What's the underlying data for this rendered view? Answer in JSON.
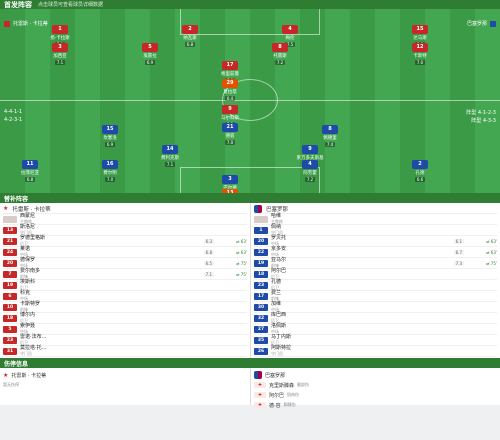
{
  "header": {
    "title": "首发阵容",
    "subtitle": "点击球员可查看球员详细数据"
  },
  "home": {
    "name": "托雷斯 · 卡拉蒂",
    "formation_sub": "",
    "color": "#c62828",
    "badge": "#c62828",
    "form": "4-4-1-1",
    "players": [
      {
        "num": "1",
        "name": "扬·卡拉斯",
        "rating": "7.0"
      },
      {
        "num": "2",
        "name": "纳瓦斯",
        "rating": "6.8"
      },
      {
        "num": "4",
        "name": "梅伦",
        "rating": "7.5"
      },
      {
        "num": "15",
        "name": "达马斯",
        "rating": "6.6"
      },
      {
        "num": "3",
        "name": "加西亚",
        "rating": "7.1"
      },
      {
        "num": "5",
        "name": "埃雷拉",
        "rating": "6.9"
      },
      {
        "num": "8",
        "name": "托雷斯",
        "rating": "7.2"
      },
      {
        "num": "12",
        "name": "卡斯特",
        "rating": "7.0"
      },
      {
        "num": "17",
        "name": "格里兹曼",
        "rating": "7.8"
      },
      {
        "num": "29",
        "name": "莫拉塔",
        "rating": "6.4"
      },
      {
        "num": "9",
        "name": "马尔科斯",
        "rating": "7.3"
      }
    ]
  },
  "away": {
    "name": "巴塞罗那",
    "color": "#1e4aa8",
    "form": "4-3-3",
    "players": [
      {
        "num": "15",
        "name": "坎塞洛",
        "rating": "6.9"
      },
      {
        "num": "8",
        "name": "佩德里",
        "rating": "7.4"
      },
      {
        "num": "21",
        "name": "德容",
        "rating": "7.0"
      },
      {
        "num": "14",
        "name": "费利克斯",
        "rating": "7.1"
      },
      {
        "num": "9",
        "name": "莱万多夫斯基",
        "rating": "7.5"
      },
      {
        "num": "11",
        "name": "拉菲尼亚",
        "rating": "6.8"
      },
      {
        "num": "16",
        "name": "费尔明",
        "rating": "7.0"
      },
      {
        "num": "3",
        "name": "巴尔德",
        "rating": "6.7"
      },
      {
        "num": "4",
        "name": "阿劳霍",
        "rating": "7.2"
      },
      {
        "num": "2",
        "name": "孔德",
        "rating": "6.6"
      },
      {
        "num": "13",
        "name": "特尔施特根",
        "rating": "7.0"
      }
    ]
  },
  "formation_left": "4-4-1-1",
  "formation_left2": "4-2-3-1",
  "formation_right": "阵型 4-1-2-3",
  "formation_right2": "阵型 4-3-3",
  "subs_section": "替补阵容",
  "subs_home": [
    {
      "num": "13",
      "name": "斯洛尼",
      "pos": "守门员",
      "score": "",
      "time": ""
    },
    {
      "num": "21",
      "name": "罗德里格斯",
      "pos": "后卫",
      "score": "6.3",
      "time": "63'"
    },
    {
      "num": "24",
      "name": "莱诺",
      "pos": "中场",
      "score": "6.8",
      "time": "63'"
    },
    {
      "num": "20",
      "name": "德保罗",
      "pos": "中场",
      "score": "6.5",
      "time": "75'"
    },
    {
      "num": "7",
      "name": "费尔南多",
      "pos": "前锋",
      "score": "7.1",
      "time": "75'"
    },
    {
      "num": "19",
      "name": "埃斯科",
      "pos": "后卫",
      "score": "",
      "time": ""
    },
    {
      "num": "6",
      "name": "科克",
      "pos": "中场",
      "score": "",
      "time": ""
    },
    {
      "num": "10",
      "name": "卡斯特罗",
      "pos": "前锋",
      "score": "",
      "time": ""
    },
    {
      "num": "18",
      "name": "博尔内",
      "pos": "后卫",
      "score": "",
      "time": ""
    },
    {
      "num": "5",
      "name": "索伊聂",
      "pos": "中场",
      "score": "",
      "time": ""
    },
    {
      "num": "23",
      "name": "雷诺·法布…",
      "pos": "后卫",
      "score": "",
      "time": ""
    },
    {
      "num": "31",
      "name": "莫拉塔·托…",
      "pos": "守门员",
      "score": "",
      "time": ""
    }
  ],
  "subs_away": [
    {
      "num": "1",
      "name": "佩纳",
      "pos": "守门员",
      "score": "",
      "time": ""
    },
    {
      "num": "20",
      "name": "罗贝托",
      "pos": "中场",
      "score": "6.1",
      "time": "63'"
    },
    {
      "num": "22",
      "name": "京多安",
      "pos": "中场",
      "score": "6.7",
      "time": "63'"
    },
    {
      "num": "19",
      "name": "亚马尔",
      "pos": "前锋",
      "score": "7.3",
      "time": "75'"
    },
    {
      "num": "18",
      "name": "阿尔巴",
      "pos": "后卫",
      "score": "",
      "time": ""
    },
    {
      "num": "23",
      "name": "孔德",
      "pos": "后卫",
      "score": "",
      "time": ""
    },
    {
      "num": "17",
      "name": "费兰",
      "pos": "前锋",
      "score": "",
      "time": ""
    },
    {
      "num": "30",
      "name": "加维",
      "pos": "中场",
      "score": "",
      "time": ""
    },
    {
      "num": "32",
      "name": "库巴西",
      "pos": "后卫",
      "score": "",
      "time": ""
    },
    {
      "num": "27",
      "name": "洛佩斯",
      "pos": "中场",
      "score": "",
      "time": ""
    },
    {
      "num": "35",
      "name": "马丁内斯",
      "pos": "后卫",
      "score": "",
      "time": ""
    },
    {
      "num": "26",
      "name": "阿斯特拉",
      "pos": "守门员",
      "score": "",
      "time": ""
    }
  ],
  "coach_home": {
    "name": "西蒙尼",
    "role": "主教练"
  },
  "coach_away": {
    "name": "哈维",
    "role": "主教练"
  },
  "injury_section": "伤停信息",
  "injury_home": [
    {
      "name": "暂无伤停",
      "note": ""
    }
  ],
  "injury_away": [
    {
      "name": "克里斯滕森",
      "note": "腿部伤"
    },
    {
      "name": "阿尔巴",
      "note": "肌肉伤"
    },
    {
      "name": "德·容",
      "note": "脚踝伤"
    }
  ]
}
